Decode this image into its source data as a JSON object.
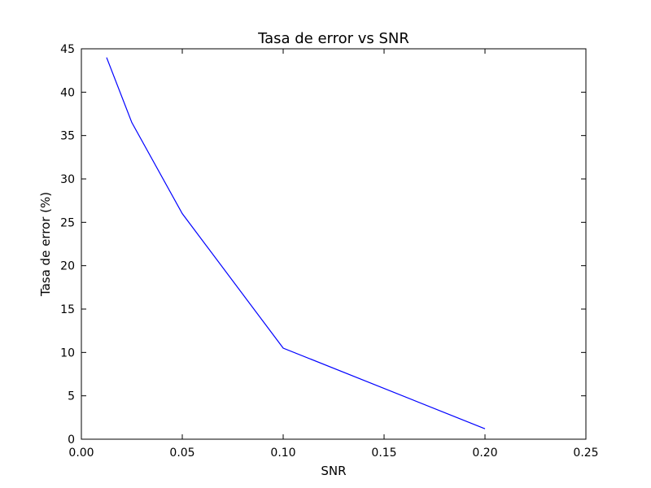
{
  "chart_data": {
    "type": "line",
    "title": "Tasa de error vs SNR",
    "xlabel": "SNR",
    "ylabel": "Tasa de error (%)",
    "xlim": [
      0.0,
      0.25
    ],
    "ylim": [
      0,
      45
    ],
    "x_ticks": [
      0.0,
      0.05,
      0.1,
      0.15,
      0.2,
      0.25
    ],
    "x_tick_labels": [
      "0.00",
      "0.05",
      "0.10",
      "0.15",
      "0.20",
      "0.25"
    ],
    "y_ticks": [
      0,
      5,
      10,
      15,
      20,
      25,
      30,
      35,
      40,
      45
    ],
    "y_tick_labels": [
      "0",
      "5",
      "10",
      "15",
      "20",
      "25",
      "30",
      "35",
      "40",
      "45"
    ],
    "grid": false,
    "legend": "none",
    "series": [
      {
        "color": "#0000ff",
        "x": [
          0.0125,
          0.025,
          0.05,
          0.1,
          0.2
        ],
        "y": [
          44.0,
          36.5,
          26.0,
          10.5,
          1.2
        ]
      }
    ]
  }
}
